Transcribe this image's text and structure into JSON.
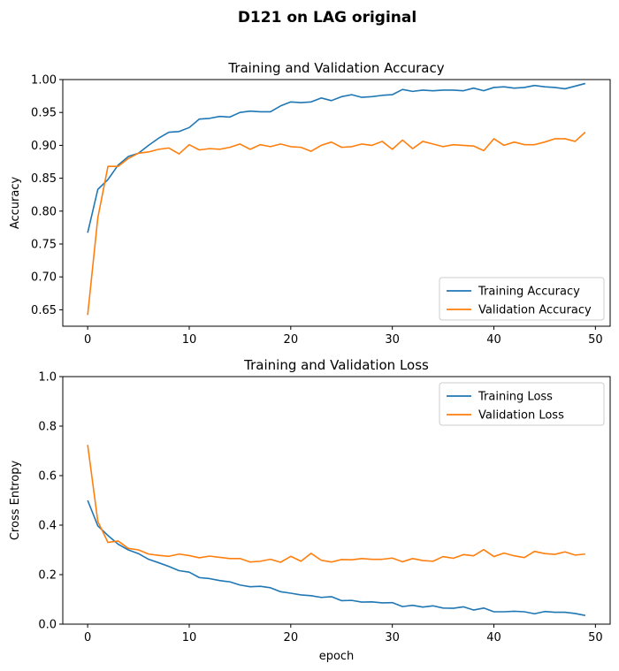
{
  "figure": {
    "suptitle": "D121 on LAG original"
  },
  "chart_data": [
    {
      "type": "line",
      "title": "Training and Validation Accuracy",
      "xlabel": "",
      "ylabel": "Accuracy",
      "xlim": [
        -2.45,
        51.45
      ],
      "ylim": [
        0.625,
        1.0
      ],
      "xticks": [
        0,
        10,
        20,
        30,
        40,
        50
      ],
      "yticks": [
        0.65,
        0.7,
        0.75,
        0.8,
        0.85,
        0.9,
        0.95,
        1.0
      ],
      "ytick_labels": [
        "0.65",
        "0.70",
        "0.75",
        "0.80",
        "0.85",
        "0.90",
        "0.95",
        "1.00"
      ],
      "legend": "lower-right",
      "series": [
        {
          "name": "Training Accuracy",
          "color": "#1f77b4",
          "values": [
            0.767,
            0.833,
            0.848,
            0.87,
            0.883,
            0.888,
            0.9,
            0.911,
            0.92,
            0.921,
            0.927,
            0.94,
            0.941,
            0.944,
            0.943,
            0.95,
            0.952,
            0.951,
            0.951,
            0.96,
            0.966,
            0.965,
            0.966,
            0.972,
            0.968,
            0.974,
            0.977,
            0.973,
            0.974,
            0.976,
            0.977,
            0.985,
            0.982,
            0.984,
            0.983,
            0.984,
            0.984,
            0.983,
            0.987,
            0.983,
            0.988,
            0.989,
            0.987,
            0.988,
            0.991,
            0.989,
            0.988,
            0.986,
            0.99,
            0.994
          ]
        },
        {
          "name": "Validation Accuracy",
          "color": "#ff7f0e",
          "values": [
            0.642,
            0.79,
            0.868,
            0.868,
            0.88,
            0.888,
            0.89,
            0.894,
            0.896,
            0.887,
            0.901,
            0.893,
            0.895,
            0.894,
            0.897,
            0.902,
            0.894,
            0.901,
            0.898,
            0.902,
            0.898,
            0.897,
            0.891,
            0.9,
            0.905,
            0.897,
            0.898,
            0.902,
            0.9,
            0.906,
            0.894,
            0.908,
            0.895,
            0.906,
            0.902,
            0.898,
            0.901,
            0.9,
            0.899,
            0.892,
            0.91,
            0.9,
            0.905,
            0.901,
            0.901,
            0.905,
            0.91,
            0.91,
            0.906,
            0.92
          ]
        }
      ]
    },
    {
      "type": "line",
      "title": "Training and Validation Loss",
      "xlabel": "epoch",
      "ylabel": "Cross Entropy",
      "xlim": [
        -2.45,
        51.45
      ],
      "ylim": [
        0.0,
        1.0
      ],
      "xticks": [
        0,
        10,
        20,
        30,
        40,
        50
      ],
      "yticks": [
        0.0,
        0.2,
        0.4,
        0.6,
        0.8,
        1.0
      ],
      "ytick_labels": [
        "0.0",
        "0.2",
        "0.4",
        "0.6",
        "0.8",
        "1.0"
      ],
      "legend": "upper-right",
      "series": [
        {
          "name": "Training Loss",
          "color": "#1f77b4",
          "values": [
            0.5,
            0.397,
            0.358,
            0.323,
            0.3,
            0.285,
            0.262,
            0.248,
            0.233,
            0.216,
            0.21,
            0.188,
            0.184,
            0.176,
            0.171,
            0.158,
            0.151,
            0.153,
            0.147,
            0.131,
            0.125,
            0.118,
            0.115,
            0.108,
            0.111,
            0.095,
            0.096,
            0.089,
            0.09,
            0.086,
            0.087,
            0.071,
            0.076,
            0.069,
            0.074,
            0.065,
            0.064,
            0.07,
            0.057,
            0.065,
            0.05,
            0.05,
            0.052,
            0.05,
            0.042,
            0.051,
            0.048,
            0.048,
            0.043,
            0.035
          ]
        },
        {
          "name": "Validation Loss",
          "color": "#ff7f0e",
          "values": [
            0.724,
            0.415,
            0.33,
            0.336,
            0.306,
            0.3,
            0.283,
            0.278,
            0.274,
            0.283,
            0.277,
            0.268,
            0.275,
            0.27,
            0.265,
            0.265,
            0.251,
            0.254,
            0.262,
            0.25,
            0.274,
            0.254,
            0.286,
            0.258,
            0.251,
            0.261,
            0.26,
            0.265,
            0.262,
            0.262,
            0.267,
            0.252,
            0.265,
            0.257,
            0.254,
            0.273,
            0.266,
            0.281,
            0.276,
            0.301,
            0.273,
            0.287,
            0.276,
            0.269,
            0.294,
            0.285,
            0.282,
            0.292,
            0.279,
            0.283
          ]
        }
      ]
    }
  ]
}
